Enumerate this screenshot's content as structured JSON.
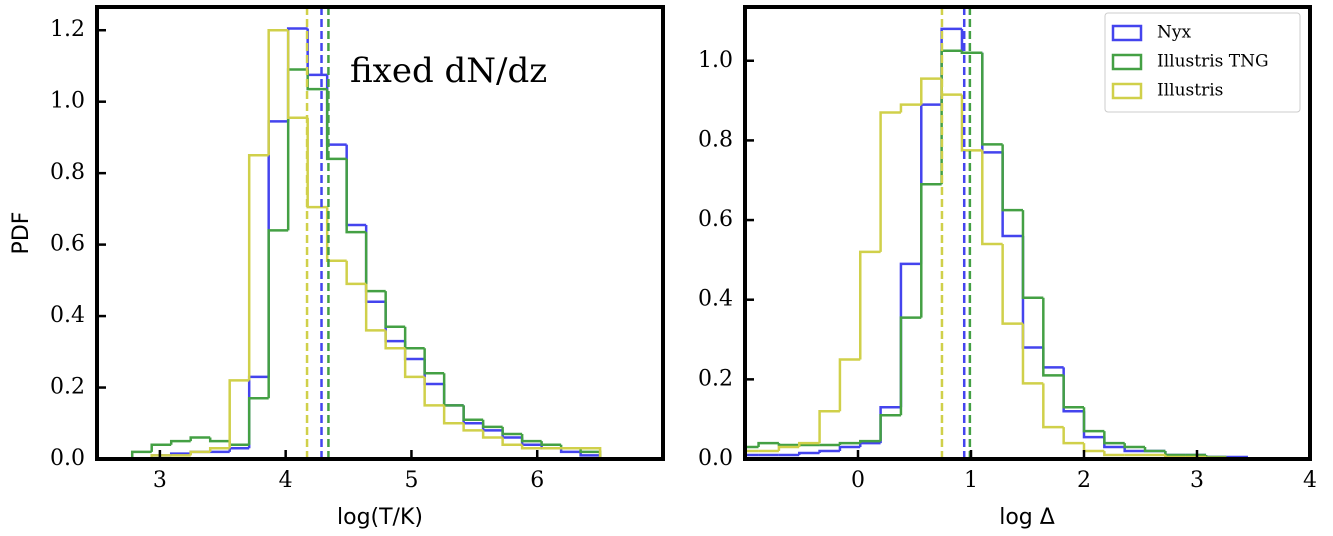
{
  "chart_data": [
    {
      "type": "histogram",
      "ylabel": "PDF",
      "xlabel": "log(T/K)",
      "annotation": "fixed dN/dz",
      "xlim": [
        2.5,
        7.0
      ],
      "ylim": [
        0,
        1.265
      ],
      "xticks": [
        3,
        4,
        5,
        6
      ],
      "yticks": [
        {
          "value": 0,
          "label": "0.0"
        },
        {
          "value": 0.2,
          "label": "0.2"
        },
        {
          "value": 0.4,
          "label": "0.4"
        },
        {
          "value": 0.6,
          "label": "0.6"
        },
        {
          "value": 0.8,
          "label": "0.8"
        },
        {
          "value": 1.0,
          "label": "1.0"
        },
        {
          "value": 1.2,
          "label": "1.2"
        }
      ],
      "bins": [
        2.78,
        2.935,
        3.09,
        3.245,
        3.4,
        3.555,
        3.71,
        3.865,
        4.02,
        4.175,
        4.33,
        4.485,
        4.64,
        4.795,
        4.95,
        5.105,
        5.26,
        5.415,
        5.57,
        5.725,
        5.88,
        6.035,
        6.19,
        6.345,
        6.5
      ],
      "series": [
        {
          "color": "#4444ee",
          "median": 4.285,
          "values": [
            0,
            0.01,
            0.015,
            0.02,
            0.02,
            0.03,
            0.23,
            0.945,
            1.205,
            1.075,
            0.88,
            0.655,
            0.44,
            0.33,
            0.28,
            0.21,
            0.15,
            0.1,
            0.08,
            0.06,
            0.04,
            0.03,
            0.02,
            0.01
          ]
        },
        {
          "color": "#44a044",
          "median": 4.34,
          "values": [
            0.02,
            0.04,
            0.05,
            0.06,
            0.05,
            0.04,
            0.17,
            0.64,
            1.09,
            1.035,
            0.84,
            0.635,
            0.47,
            0.37,
            0.31,
            0.24,
            0.15,
            0.11,
            0.09,
            0.07,
            0.05,
            0.04,
            0.03,
            0.02
          ]
        },
        {
          "color": "#d0d04a",
          "median": 4.17,
          "values": [
            0,
            0.01,
            0.01,
            0.02,
            0.03,
            0.22,
            0.85,
            1.2,
            0.955,
            0.705,
            0.555,
            0.49,
            0.36,
            0.31,
            0.23,
            0.15,
            0.1,
            0.08,
            0.06,
            0.04,
            0.03,
            0.03,
            0.03,
            0.03
          ]
        }
      ]
    },
    {
      "type": "histogram",
      "xlabel": "log Δ",
      "legend": "upper right",
      "xlim": [
        -1,
        4
      ],
      "ylim": [
        0,
        1.135
      ],
      "xticks": [
        0,
        1,
        2,
        3,
        4
      ],
      "yticks": [
        {
          "value": 0,
          "label": "0.0"
        },
        {
          "value": 0.2,
          "label": "0.2"
        },
        {
          "value": 0.4,
          "label": "0.4"
        },
        {
          "value": 0.6,
          "label": "0.6"
        },
        {
          "value": 0.8,
          "label": "0.8"
        },
        {
          "value": 1.0,
          "label": "1.0"
        }
      ],
      "bins": [
        -1.06,
        -0.88,
        -0.7,
        -0.52,
        -0.34,
        -0.16,
        0.02,
        0.2,
        0.38,
        0.56,
        0.74,
        0.92,
        1.1,
        1.28,
        1.46,
        1.64,
        1.82,
        2.0,
        2.18,
        2.36,
        2.54,
        2.72,
        2.9,
        3.08,
        3.26,
        3.44
      ],
      "series": [
        {
          "name": "Nyx",
          "color": "#4444ee",
          "median": 0.94,
          "values": [
            0.01,
            0.01,
            0.01,
            0.015,
            0.02,
            0.03,
            0.04,
            0.13,
            0.49,
            0.89,
            1.08,
            1.02,
            0.77,
            0.56,
            0.28,
            0.23,
            0.12,
            0.055,
            0.03,
            0.02,
            0.02,
            0.01,
            0.01,
            0.005,
            0.005
          ]
        },
        {
          "name": "Illustris TNG",
          "color": "#44a044",
          "median": 0.99,
          "values": [
            0.03,
            0.04,
            0.035,
            0.035,
            0.035,
            0.04,
            0.045,
            0.11,
            0.355,
            0.69,
            1.025,
            1.02,
            0.79,
            0.625,
            0.405,
            0.21,
            0.13,
            0.07,
            0.04,
            0.03,
            0.02,
            0.01,
            0.01,
            0.005,
            0
          ]
        },
        {
          "name": "Illustris",
          "color": "#d0d04a",
          "median": 0.743,
          "values": [
            0.02,
            0.02,
            0.03,
            0.04,
            0.12,
            0.25,
            0.52,
            0.87,
            0.89,
            0.955,
            0.915,
            0.775,
            0.54,
            0.34,
            0.19,
            0.08,
            0.04,
            0.02,
            0.01,
            0.01,
            0.01,
            0.005,
            0.005,
            0.003,
            0
          ]
        }
      ]
    }
  ]
}
